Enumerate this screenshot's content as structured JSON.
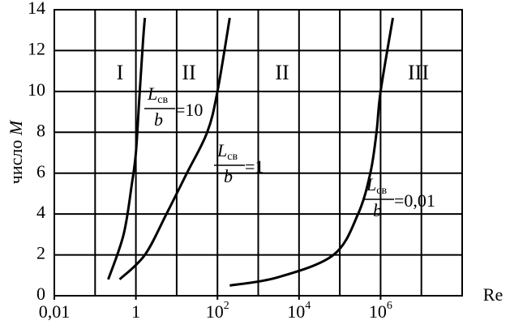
{
  "chart_data": {
    "type": "line",
    "xscale": "log",
    "y_label": "число",
    "y_label_var": "M",
    "x_label": "Re",
    "xlim": [
      0.01,
      100000000
    ],
    "ylim": [
      0,
      14
    ],
    "xticks": [
      {
        "value": 0.01,
        "label": "0,01"
      },
      1,
      {
        "value": 100,
        "label": "10",
        "sup": "2"
      },
      {
        "value": 10000,
        "label": "10",
        "sup": "4"
      },
      {
        "value": 1000000,
        "label": "10",
        "sup": "6"
      }
    ],
    "xgrid": [
      0.1,
      1,
      10,
      100,
      1000,
      10000,
      100000,
      1000000,
      10000000
    ],
    "yticks": [
      0,
      2,
      4,
      6,
      8,
      10,
      12,
      14
    ],
    "grid": true,
    "color": "#000000",
    "regions": [
      "I",
      "II",
      "II",
      "III"
    ],
    "series": [
      {
        "x": [
          0.21,
          0.5,
          0.8,
          1,
          1.2,
          1.5,
          1.66
        ],
        "values": [
          0.8,
          3,
          5.5,
          7,
          9.5,
          12.5,
          13.6
        ],
        "annotation": {
          "numerator": "L",
          "subscript": "св",
          "denominator": "b",
          "suffix": "=10"
        }
      },
      {
        "x": [
          0.4,
          1.66,
          5.6,
          17.8,
          56,
          100,
          200
        ],
        "values": [
          0.8,
          2,
          4,
          6,
          8,
          10,
          13.6
        ],
        "annotation": {
          "numerator": "L",
          "subscript": "св",
          "denominator": "b",
          "suffix": "=1"
        }
      },
      {
        "x": [
          200,
          3000,
          70000,
          280000,
          560000,
          794000,
          1000000,
          2000000
        ],
        "values": [
          0.5,
          0.9,
          2,
          4,
          6,
          8,
          10,
          13.6
        ],
        "annotation": {
          "numerator": "L",
          "subscript": "св",
          "denominator": "b",
          "suffix": "=0,01"
        }
      }
    ]
  }
}
